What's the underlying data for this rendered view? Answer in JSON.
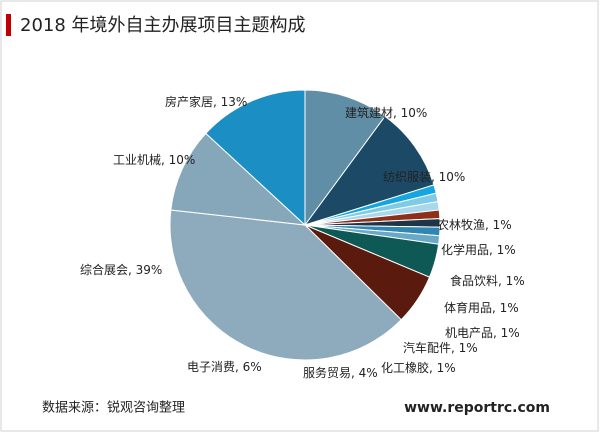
{
  "chart_data": {
    "type": "pie",
    "title": "2018 年境外自主办展项目主题构成",
    "categories": [
      "建筑建材",
      "纺织服装",
      "农林牧渔",
      "化学用品",
      "食品饮料",
      "体育用品",
      "机电产品",
      "汽车配件",
      "化工橡胶",
      "服务贸易",
      "电子消费",
      "综合展会",
      "工业机械",
      "房产家居"
    ],
    "values": [
      10,
      10,
      1,
      1,
      1,
      1,
      1,
      1,
      1,
      4,
      6,
      39,
      10,
      13
    ],
    "value_labels": [
      "10%",
      "10%",
      "1%",
      "1%",
      "1%",
      "1%",
      "1%",
      "1%",
      "1%",
      "4%",
      "6%",
      "39%",
      "10%",
      "13%"
    ],
    "colors": [
      "#5f8ea6",
      "#1c4a66",
      "#14a6e0",
      "#7fcbe6",
      "#a9d8ec",
      "#8e2f1a",
      "#1d3548",
      "#2f86b0",
      "#6aa9c6",
      "#0e5955",
      "#5a1a0d",
      "#8eabbd",
      "#86a7ba",
      "#1b8fc4"
    ]
  },
  "source": "数据来源：锐观咨询整理",
  "website": "www.reportrc.com"
}
